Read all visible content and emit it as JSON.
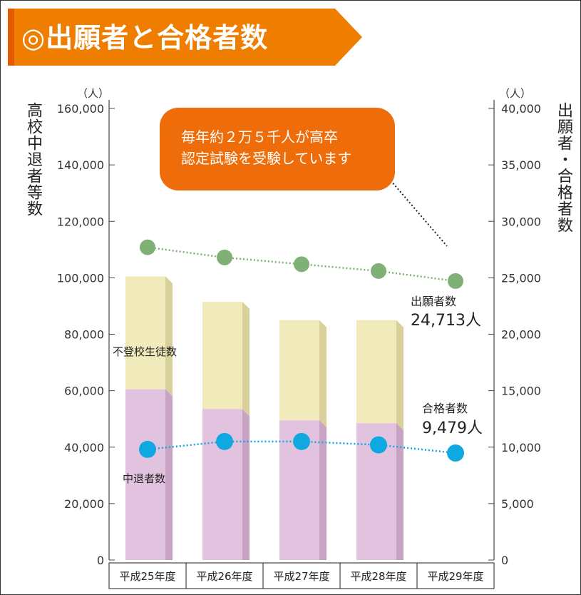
{
  "header": {
    "title": "◎出願者と合格者数",
    "accent_color": "#ee7d00"
  },
  "callout": {
    "line1": "毎年約２万５千人が高卒",
    "line2": "認定試験を受験しています",
    "color": "#ee6d0a"
  },
  "axes": {
    "left_unit": "（人）",
    "right_unit": "（人）",
    "left_title": "高校中退者等数",
    "right_title": "出願者・合格者数"
  },
  "chart_data": {
    "type": "bar",
    "categories": [
      "平成25年度",
      "平成26年度",
      "平成27年度",
      "平成28年度",
      "平成29年度"
    ],
    "left_axis": {
      "ylim": [
        0,
        160000
      ],
      "ticks": [
        "0",
        "20,000",
        "40,000",
        "60,000",
        "80,000",
        "100,000",
        "120,000",
        "140,000",
        "160,000"
      ]
    },
    "right_axis": {
      "ylim": [
        0,
        40000
      ],
      "ticks": [
        "0",
        "5,000",
        "10,000",
        "15,000",
        "20,000",
        "25,000",
        "30,000",
        "35,000",
        "40,000"
      ]
    },
    "bar_series": [
      {
        "name": "中退者数",
        "axis": "left",
        "color": "#e2c3df",
        "values": [
          60500,
          53500,
          49500,
          48500,
          null
        ]
      },
      {
        "name": "不登校生徒数",
        "axis": "left",
        "color": "#f1ebbc",
        "values": [
          40000,
          38000,
          35500,
          36500,
          null
        ]
      }
    ],
    "line_series": [
      {
        "name": "出願者数",
        "axis": "right",
        "color": "#7fb075",
        "values": [
          27700,
          26800,
          26200,
          25600,
          24713
        ]
      },
      {
        "name": "合格者数",
        "axis": "right",
        "color": "#10a8e0",
        "values": [
          9800,
          10500,
          10500,
          10200,
          9479
        ]
      }
    ],
    "annotations": {
      "applicants_label": "出願者数",
      "applicants_value": "24,713人",
      "passers_label": "合格者数",
      "passers_value": "9,479人",
      "dropout_label": "中退者数",
      "nonattend_label": "不登校生徒数"
    },
    "grid": false
  }
}
